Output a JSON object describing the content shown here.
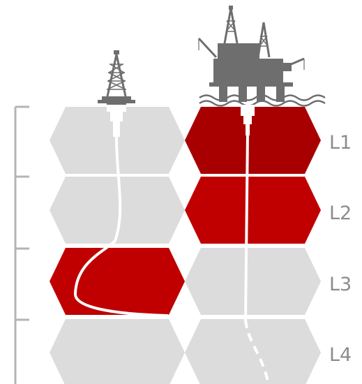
{
  "levels": [
    {
      "label": "L1",
      "onshore_active": false,
      "offshore_active": true
    },
    {
      "label": "L2",
      "onshore_active": false,
      "offshore_active": true
    },
    {
      "label": "L3",
      "onshore_active": true,
      "offshore_active": false
    },
    {
      "label": "L4",
      "onshore_active": false,
      "offshore_active": false
    }
  ],
  "colors": {
    "inactive": "#dcdcdc",
    "active": "#c00000",
    "active_dark": "#a80000",
    "equipment": "#6e6e6e",
    "bracket": "#b4b4b4",
    "label": "#8c8c8c"
  },
  "icons": {
    "onshore": "oil-derrick-icon",
    "offshore": "offshore-platform-icon"
  }
}
